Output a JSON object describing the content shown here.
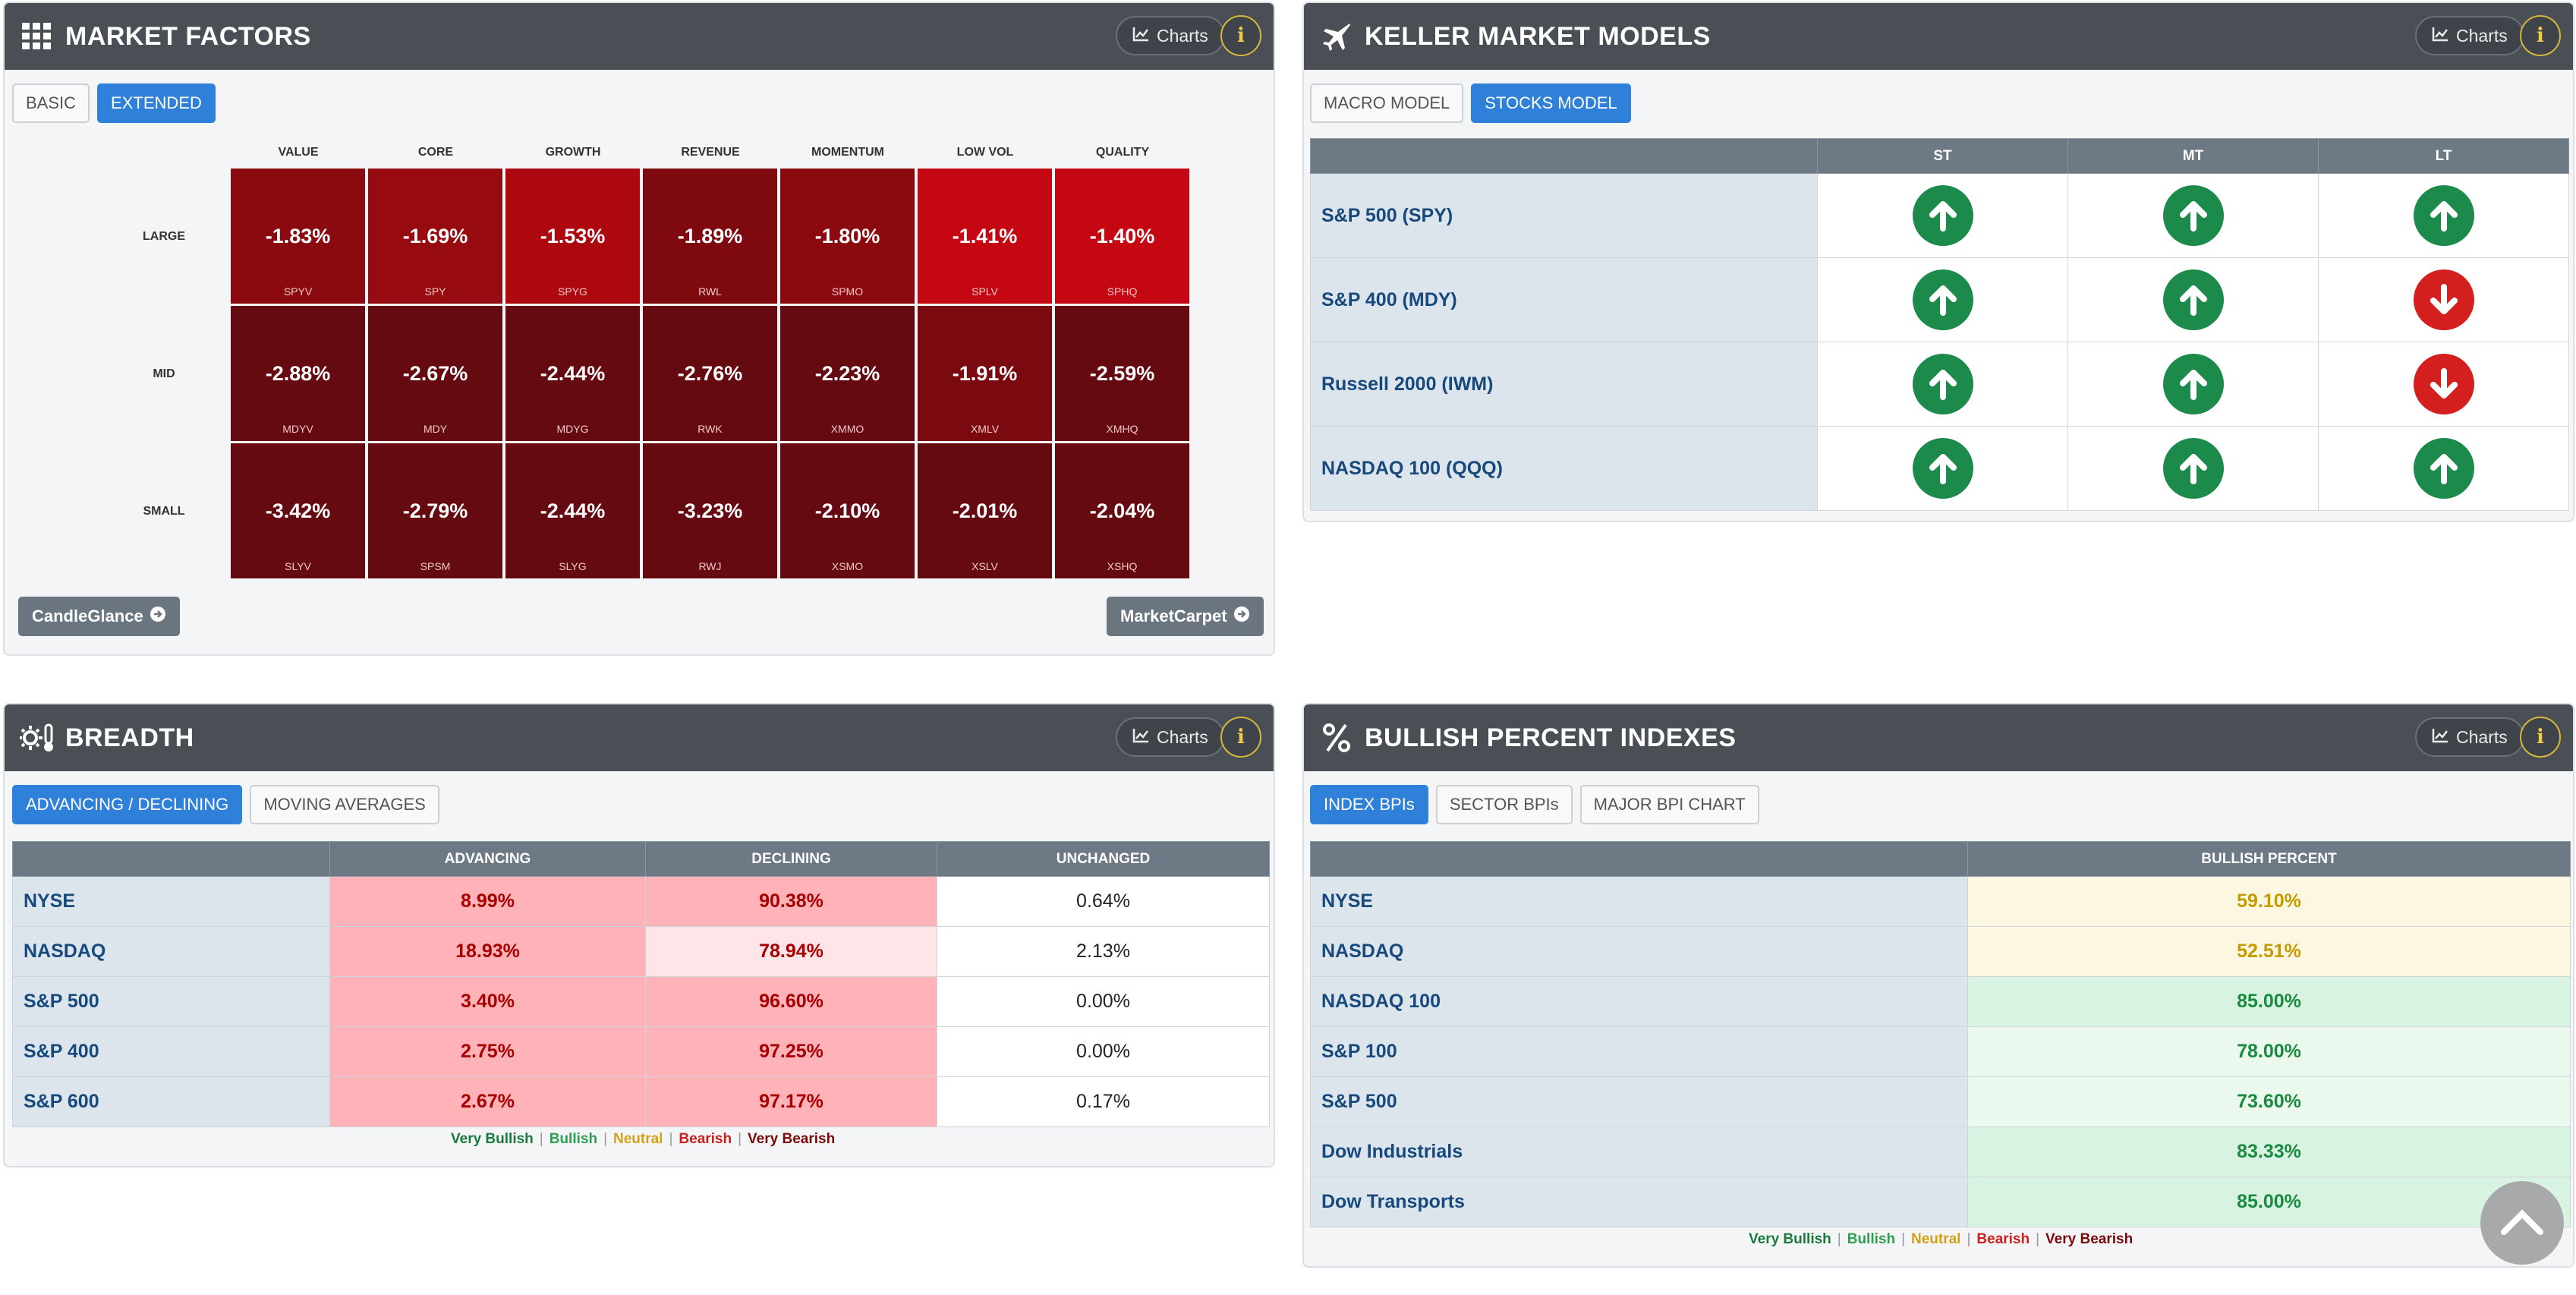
{
  "market_factors": {
    "title": "MARKET FACTORS",
    "charts_label": "Charts",
    "info_label": "i",
    "tabs": [
      "BASIC",
      "EXTENDED"
    ],
    "active_tab": 1,
    "columns": [
      "VALUE",
      "CORE",
      "GROWTH",
      "REVENUE",
      "MOMENTUM",
      "LOW VOL",
      "QUALITY"
    ],
    "rows": [
      {
        "label": "LARGE",
        "cells": [
          {
            "value": "-1.83%",
            "symbol": "SPYV",
            "color": "#8b0a0f"
          },
          {
            "value": "-1.69%",
            "symbol": "SPY",
            "color": "#960a10"
          },
          {
            "value": "-1.53%",
            "symbol": "SPYG",
            "color": "#ad0810"
          },
          {
            "value": "-1.89%",
            "symbol": "RWL",
            "color": "#7e0a10"
          },
          {
            "value": "-1.80%",
            "symbol": "SPMO",
            "color": "#8b0a0f"
          },
          {
            "value": "-1.41%",
            "symbol": "SPLV",
            "color": "#c40712"
          },
          {
            "value": "-1.40%",
            "symbol": "SPHQ",
            "color": "#c40712"
          }
        ]
      },
      {
        "label": "MID",
        "cells": [
          {
            "value": "-2.88%",
            "symbol": "MDYV",
            "color": "#650a10"
          },
          {
            "value": "-2.67%",
            "symbol": "MDY",
            "color": "#650a10"
          },
          {
            "value": "-2.44%",
            "symbol": "MDYG",
            "color": "#650a10"
          },
          {
            "value": "-2.76%",
            "symbol": "RWK",
            "color": "#650a10"
          },
          {
            "value": "-2.23%",
            "symbol": "XMMO",
            "color": "#650a10"
          },
          {
            "value": "-1.91%",
            "symbol": "XMLV",
            "color": "#7a0a10"
          },
          {
            "value": "-2.59%",
            "symbol": "XMHQ",
            "color": "#650a10"
          }
        ]
      },
      {
        "label": "SMALL",
        "cells": [
          {
            "value": "-3.42%",
            "symbol": "SLYV",
            "color": "#650a10"
          },
          {
            "value": "-2.79%",
            "symbol": "SPSM",
            "color": "#650a10"
          },
          {
            "value": "-2.44%",
            "symbol": "SLYG",
            "color": "#650a10"
          },
          {
            "value": "-3.23%",
            "symbol": "RWJ",
            "color": "#650a10"
          },
          {
            "value": "-2.10%",
            "symbol": "XSMO",
            "color": "#650a10"
          },
          {
            "value": "-2.01%",
            "symbol": "XSLV",
            "color": "#650a10"
          },
          {
            "value": "-2.04%",
            "symbol": "XSHQ",
            "color": "#650a10"
          }
        ]
      }
    ],
    "left_button": "CandleGlance",
    "right_button": "MarketCarpet"
  },
  "keller": {
    "title": "KELLER MARKET MODELS",
    "charts_label": "Charts",
    "info_label": "i",
    "tabs": [
      "MACRO MODEL",
      "STOCKS MODEL"
    ],
    "active_tab": 1,
    "columns": [
      "",
      "ST",
      "MT",
      "LT"
    ],
    "rows": [
      {
        "name": "S&P 500 (SPY)",
        "signals": [
          "up",
          "up",
          "up"
        ]
      },
      {
        "name": "S&P 400 (MDY)",
        "signals": [
          "up",
          "up",
          "down"
        ]
      },
      {
        "name": "Russell 2000 (IWM)",
        "signals": [
          "up",
          "up",
          "down"
        ]
      },
      {
        "name": "NASDAQ 100 (QQQ)",
        "signals": [
          "up",
          "up",
          "up"
        ]
      }
    ],
    "colors": {
      "up": "#1c8a4a",
      "down": "#d41f1f"
    }
  },
  "breadth": {
    "title": "BREADTH",
    "charts_label": "Charts",
    "info_label": "i",
    "tabs": [
      "ADVANCING / DECLINING",
      "MOVING AVERAGES"
    ],
    "active_tab": 0,
    "columns": [
      "",
      "ADVANCING",
      "DECLINING",
      "UNCHANGED"
    ],
    "rows": [
      {
        "name": "NYSE",
        "advancing": "8.99%",
        "declining": "90.38%",
        "unchanged": "0.64%",
        "adv_bg": "#ffb3b8",
        "dec_bg": "#ffb3b8"
      },
      {
        "name": "NASDAQ",
        "advancing": "18.93%",
        "declining": "78.94%",
        "unchanged": "2.13%",
        "adv_bg": "#ffb3b8",
        "dec_bg": "#ffe5e7"
      },
      {
        "name": "S&P 500",
        "advancing": "3.40%",
        "declining": "96.60%",
        "unchanged": "0.00%",
        "adv_bg": "#ffb3b8",
        "dec_bg": "#ffb3b8"
      },
      {
        "name": "S&P 400",
        "advancing": "2.75%",
        "declining": "97.25%",
        "unchanged": "0.00%",
        "adv_bg": "#ffb3b8",
        "dec_bg": "#ffb3b8"
      },
      {
        "name": "S&P 600",
        "advancing": "2.67%",
        "declining": "97.17%",
        "unchanged": "0.17%",
        "adv_bg": "#ffb3b8",
        "dec_bg": "#ffb3b8"
      }
    ],
    "legend": [
      {
        "label": "Very Bullish",
        "color": "#1a7a3c"
      },
      {
        "label": "Bullish",
        "color": "#2e9e4f"
      },
      {
        "label": "Neutral",
        "color": "#d4a017"
      },
      {
        "label": "Bearish",
        "color": "#c81f1f"
      },
      {
        "label": "Very Bearish",
        "color": "#7a0a0a"
      }
    ]
  },
  "bpi": {
    "title": "BULLISH PERCENT INDEXES",
    "charts_label": "Charts",
    "info_label": "i",
    "tabs": [
      "INDEX BPIs",
      "SECTOR BPIs",
      "MAJOR BPI CHART"
    ],
    "active_tab": 0,
    "columns": [
      "",
      "BULLISH PERCENT"
    ],
    "rows": [
      {
        "name": "NYSE",
        "value": "59.10%",
        "bg": "#fcf7e1",
        "color": "#c79a00"
      },
      {
        "name": "NASDAQ",
        "value": "52.51%",
        "bg": "#fcf7e1",
        "color": "#c79a00"
      },
      {
        "name": "NASDAQ 100",
        "value": "85.00%",
        "bg": "#d8f3e1",
        "color": "#1a8a3f"
      },
      {
        "name": "S&P 100",
        "value": "78.00%",
        "bg": "#eaf8ee",
        "color": "#1a8a3f"
      },
      {
        "name": "S&P 500",
        "value": "73.60%",
        "bg": "#eaf8ee",
        "color": "#1a8a3f"
      },
      {
        "name": "Dow Industrials",
        "value": "83.33%",
        "bg": "#d8f3e1",
        "color": "#1a8a3f"
      },
      {
        "name": "Dow Transports",
        "value": "85.00%",
        "bg": "#d8f3e1",
        "color": "#1a8a3f"
      }
    ],
    "legend": [
      {
        "label": "Very Bullish",
        "color": "#1a7a3c"
      },
      {
        "label": "Bullish",
        "color": "#2e9e4f"
      },
      {
        "label": "Neutral",
        "color": "#d4a017"
      },
      {
        "label": "Bearish",
        "color": "#c81f1f"
      },
      {
        "label": "Very Bearish",
        "color": "#7a0a0a"
      }
    ]
  }
}
